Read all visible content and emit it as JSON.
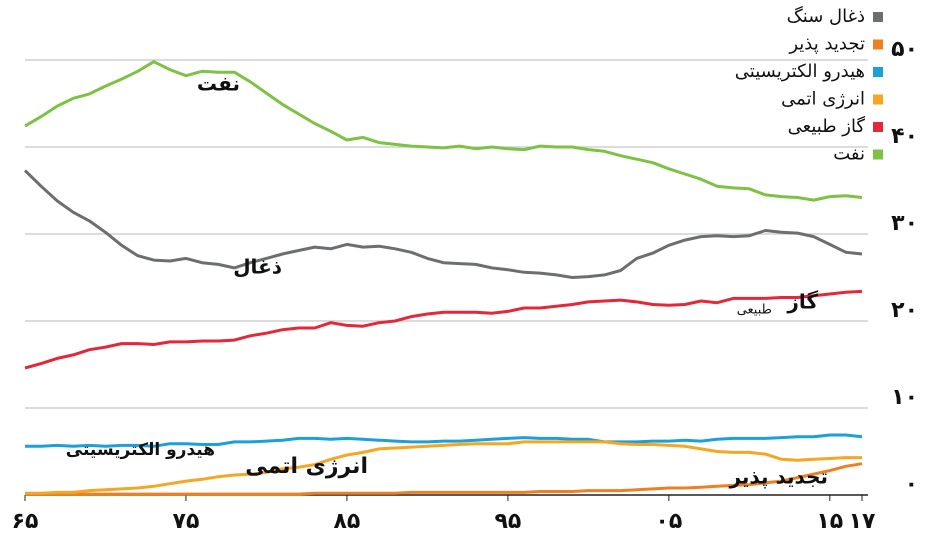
{
  "chart_data": {
    "type": "line",
    "x": [
      1965,
      1966,
      1967,
      1968,
      1969,
      1970,
      1971,
      1972,
      1973,
      1974,
      1975,
      1976,
      1977,
      1978,
      1979,
      1980,
      1981,
      1982,
      1983,
      1984,
      1985,
      1986,
      1987,
      1988,
      1989,
      1990,
      1991,
      1992,
      1993,
      1994,
      1995,
      1996,
      1997,
      1998,
      1999,
      2000,
      2001,
      2002,
      2003,
      2004,
      2005,
      2006,
      2007,
      2008,
      2009,
      2010,
      2011,
      2012,
      2013,
      2014,
      2015,
      2016,
      2017
    ],
    "series": [
      {
        "name": "ذغال سنگ",
        "color": "#6d6e70",
        "values": [
          37.3,
          35.5,
          33.8,
          32.5,
          31.5,
          30.2,
          28.7,
          27.5,
          27.0,
          26.9,
          27.2,
          26.7,
          26.5,
          26.1,
          26.7,
          27.2,
          27.7,
          28.1,
          28.5,
          28.3,
          28.8,
          28.5,
          28.6,
          28.3,
          27.9,
          27.2,
          26.7,
          26.6,
          26.5,
          26.1,
          25.9,
          25.6,
          25.5,
          25.3,
          25.0,
          25.1,
          25.3,
          25.8,
          27.2,
          27.8,
          28.7,
          29.3,
          29.7,
          29.8,
          29.7,
          29.8,
          30.4,
          30.2,
          30.1,
          29.7,
          28.8,
          27.9,
          27.7
        ]
      },
      {
        "name": "تجدید پذیر",
        "color": "#f07f21",
        "values": [
          0.1,
          0.1,
          0.1,
          0.1,
          0.1,
          0.1,
          0.1,
          0.1,
          0.1,
          0.1,
          0.1,
          0.1,
          0.1,
          0.1,
          0.1,
          0.1,
          0.1,
          0.1,
          0.2,
          0.2,
          0.2,
          0.2,
          0.2,
          0.2,
          0.3,
          0.3,
          0.3,
          0.3,
          0.3,
          0.3,
          0.3,
          0.3,
          0.4,
          0.4,
          0.4,
          0.5,
          0.5,
          0.5,
          0.6,
          0.7,
          0.8,
          0.8,
          0.9,
          1.0,
          1.1,
          1.2,
          1.4,
          1.6,
          2.0,
          2.4,
          2.8,
          3.3,
          3.6
        ]
      },
      {
        "name": "هیدرو الکتریسیتی",
        "color": "#1ba1d8",
        "values": [
          5.6,
          5.6,
          5.7,
          5.6,
          5.7,
          5.6,
          5.7,
          5.7,
          5.6,
          5.9,
          5.9,
          5.8,
          5.8,
          6.1,
          6.1,
          6.2,
          6.3,
          6.5,
          6.5,
          6.4,
          6.5,
          6.4,
          6.3,
          6.2,
          6.1,
          6.1,
          6.2,
          6.2,
          6.3,
          6.4,
          6.5,
          6.6,
          6.5,
          6.5,
          6.4,
          6.4,
          6.1,
          6.1,
          6.1,
          6.2,
          6.2,
          6.3,
          6.2,
          6.4,
          6.5,
          6.5,
          6.5,
          6.6,
          6.7,
          6.7,
          6.9,
          6.9,
          6.7
        ]
      },
      {
        "name": "انرژی اتمی",
        "color": "#f5a623",
        "values": [
          0.2,
          0.2,
          0.3,
          0.3,
          0.5,
          0.6,
          0.7,
          0.8,
          1.0,
          1.3,
          1.6,
          1.8,
          2.1,
          2.3,
          2.4,
          2.6,
          3.0,
          3.2,
          3.5,
          4.1,
          4.6,
          4.9,
          5.3,
          5.4,
          5.5,
          5.6,
          5.7,
          5.8,
          5.9,
          5.9,
          5.9,
          6.1,
          6.1,
          6.1,
          6.1,
          6.1,
          6.1,
          5.9,
          5.8,
          5.8,
          5.7,
          5.6,
          5.3,
          5.0,
          4.9,
          4.9,
          4.7,
          4.1,
          4.0,
          4.1,
          4.2,
          4.3,
          4.3
        ]
      },
      {
        "name": "گاز طبیعی",
        "color": "#e4283a",
        "values": [
          14.6,
          15.1,
          15.7,
          16.1,
          16.7,
          17.0,
          17.4,
          17.4,
          17.3,
          17.6,
          17.6,
          17.7,
          17.7,
          17.8,
          18.3,
          18.6,
          19.0,
          19.2,
          19.2,
          19.8,
          19.5,
          19.4,
          19.8,
          20.0,
          20.5,
          20.8,
          21.0,
          21.0,
          21.0,
          20.9,
          21.1,
          21.5,
          21.5,
          21.7,
          21.9,
          22.2,
          22.3,
          22.4,
          22.2,
          21.9,
          21.8,
          21.9,
          22.3,
          22.1,
          22.6,
          22.6,
          22.6,
          22.7,
          22.7,
          22.9,
          23.1,
          23.3,
          23.4
        ]
      },
      {
        "name": "نفت",
        "color": "#7dc242",
        "values": [
          42.4,
          43.5,
          44.7,
          45.6,
          46.1,
          47.0,
          47.8,
          48.7,
          49.8,
          48.9,
          48.2,
          48.7,
          48.6,
          48.6,
          47.5,
          46.2,
          44.9,
          43.8,
          42.7,
          41.8,
          40.8,
          41.1,
          40.5,
          40.3,
          40.1,
          40.0,
          39.9,
          40.1,
          39.8,
          40.0,
          39.8,
          39.7,
          40.1,
          40.0,
          40.0,
          39.7,
          39.5,
          39.0,
          38.6,
          38.2,
          37.5,
          36.9,
          36.3,
          35.5,
          35.3,
          35.2,
          34.5,
          34.3,
          34.2,
          33.9,
          34.3,
          34.4,
          34.2
        ]
      }
    ],
    "annotations": [
      "نفت",
      "ذغال",
      "گاز",
      "طبیعی",
      "هیدرو الکتریسیتی",
      "انرژی اتمی",
      "تجدید پذیر"
    ],
    "xlim": [
      1965,
      2017
    ],
    "xticks": [
      {
        "value": 1965,
        "label": "۶۵"
      },
      {
        "value": 1975,
        "label": "۷۵"
      },
      {
        "value": 1985,
        "label": "۸۵"
      },
      {
        "value": 1995,
        "label": "۹۵"
      },
      {
        "value": 2005,
        "label": "۰۵"
      },
      {
        "value": 2015,
        "label": "۱۵"
      },
      {
        "value": 2017,
        "label": "۱۷"
      }
    ],
    "ylim": [
      0,
      50
    ],
    "yticks": [
      {
        "value": 0,
        "label": "۰"
      },
      {
        "value": 10,
        "label": "۱۰"
      },
      {
        "value": 20,
        "label": "۲۰"
      },
      {
        "value": 30,
        "label": "۳۰"
      },
      {
        "value": 40,
        "label": "۴۰"
      },
      {
        "value": 50,
        "label": "۵۰"
      }
    ],
    "grid": true,
    "legend": "top-right"
  }
}
